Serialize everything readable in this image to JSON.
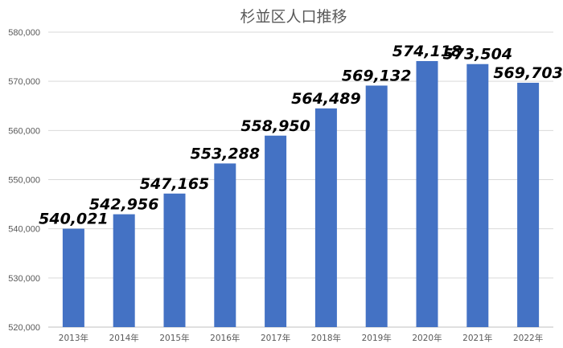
{
  "chart_data": {
    "type": "bar",
    "title": "杉並区人口推移",
    "xlabel": "",
    "ylabel": "",
    "categories": [
      "2013年",
      "2014年",
      "2015年",
      "2016年",
      "2017年",
      "2018年",
      "2019年",
      "2020年",
      "2021年",
      "2022年"
    ],
    "values": [
      540021,
      542956,
      547165,
      553288,
      558950,
      564489,
      569132,
      574118,
      573504,
      569703
    ],
    "value_labels": [
      "540,021",
      "542,956",
      "547,165",
      "553,288",
      "558,950",
      "564,489",
      "569,132",
      "574,118",
      "573,504",
      "569,703"
    ],
    "ylim": [
      520000,
      580000
    ],
    "yticks": [
      520000,
      530000,
      540000,
      550000,
      560000,
      570000,
      580000
    ],
    "ytick_labels": [
      "520,000",
      "530,000",
      "540,000",
      "550,000",
      "560,000",
      "570,000",
      "580,000"
    ],
    "grid": true,
    "legend": "none",
    "bar_color": "#4472c4"
  }
}
